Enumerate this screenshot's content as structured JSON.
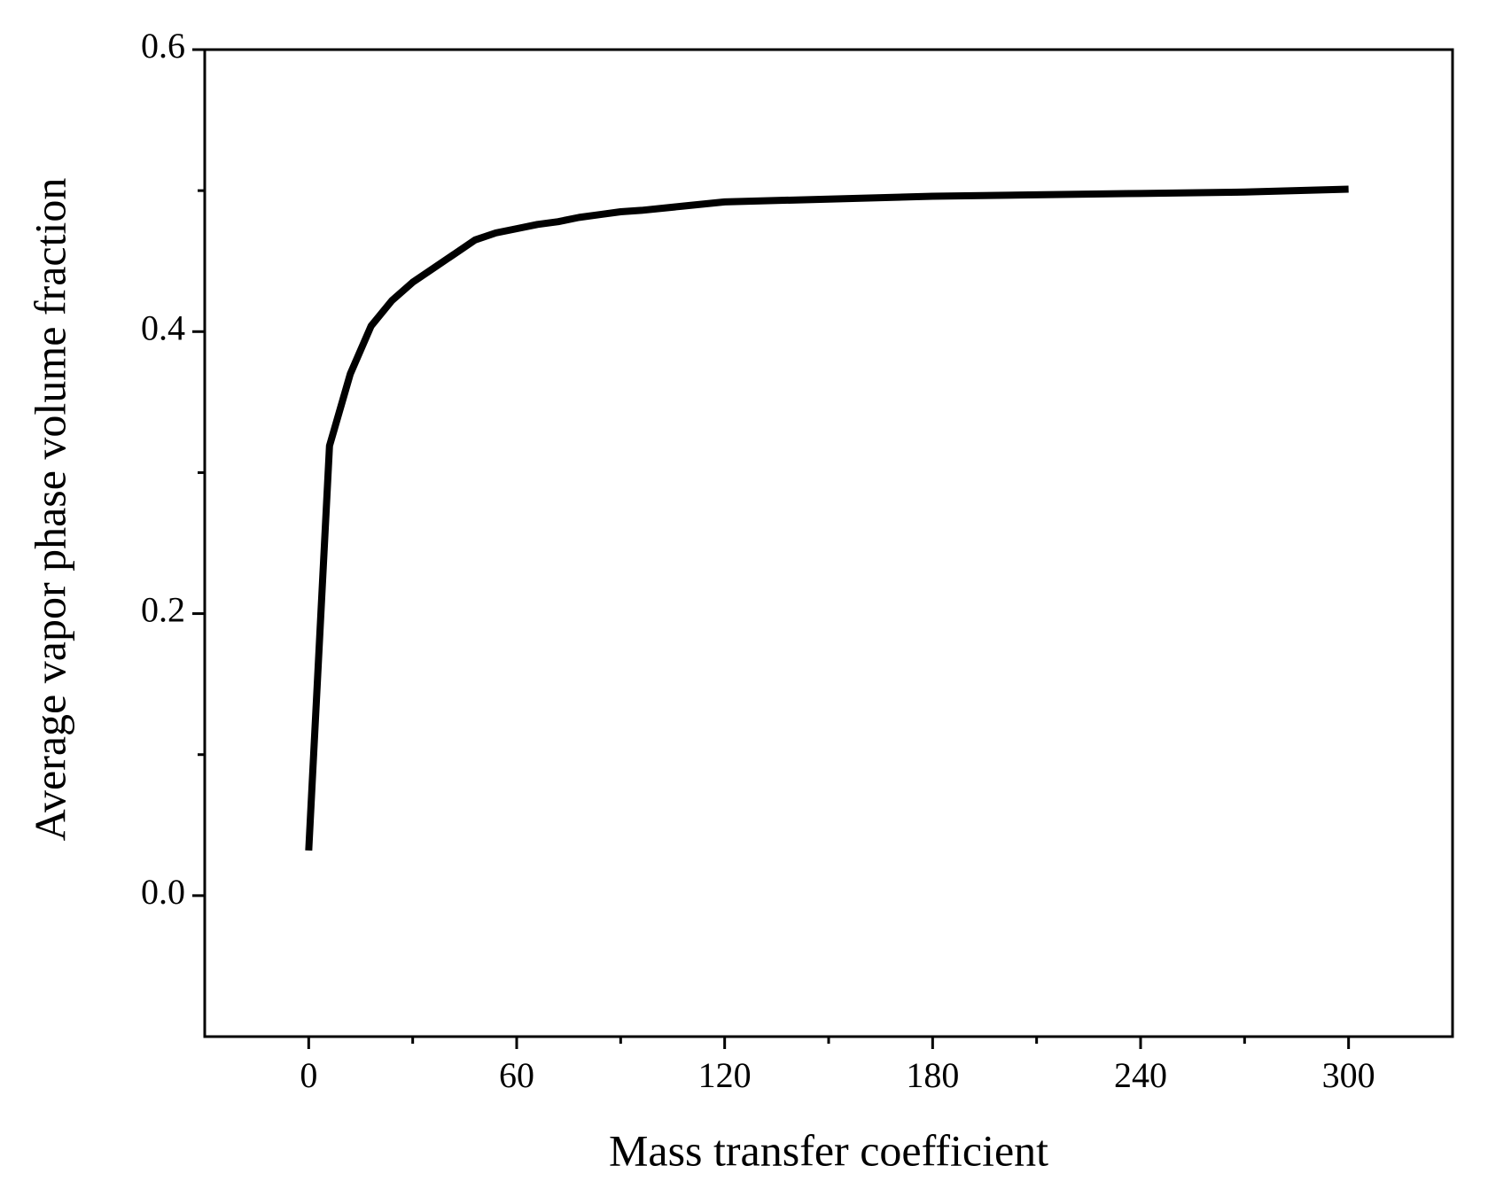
{
  "chart_data": {
    "type": "line",
    "x_label": "Mass transfer coefficient",
    "y_label": "Average vapor phase volume fraction",
    "series": [
      {
        "color": "#000000",
        "x": [
          0,
          6,
          12,
          18,
          24,
          30,
          36,
          42,
          48,
          54,
          60,
          66,
          72,
          78,
          84,
          90,
          96,
          108,
          120,
          150,
          180,
          210,
          240,
          270,
          300
        ],
        "values": [
          0.032,
          0.319,
          0.37,
          0.404,
          0.422,
          0.435,
          0.445,
          0.455,
          0.465,
          0.47,
          0.473,
          0.476,
          0.478,
          0.481,
          0.483,
          0.485,
          0.486,
          0.489,
          0.492,
          0.494,
          0.496,
          0.497,
          0.498,
          0.499,
          0.501
        ]
      }
    ],
    "xlim": [
      -30,
      330
    ],
    "ylim": [
      -0.1,
      0.6
    ],
    "xticks": [
      0,
      60,
      120,
      180,
      240,
      300
    ],
    "yticks": [
      {
        "value": 0,
        "label": "0.0"
      },
      0.2,
      0.4,
      0.6
    ],
    "xminorticks": [
      30,
      90,
      150,
      210,
      270
    ],
    "yminorticks": [
      0.1,
      0.3,
      0.5
    ],
    "grid": false
  }
}
